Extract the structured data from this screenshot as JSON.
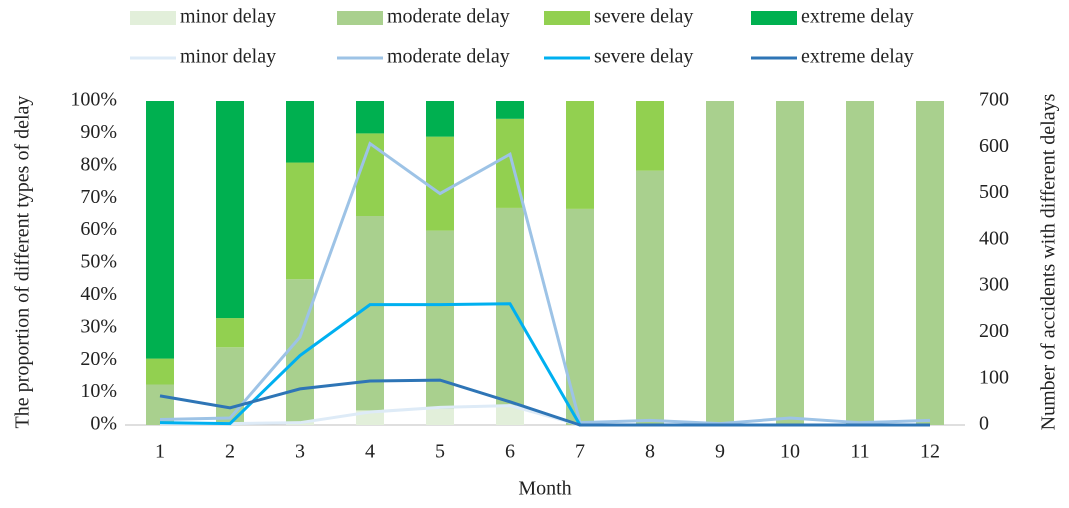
{
  "chart_data": {
    "type": "combo",
    "x_label": "Month",
    "y_label": "The proportion of different types of delay",
    "y2_label": "Number of accidents with different delays",
    "categories": [
      "1",
      "2",
      "3",
      "4",
      "5",
      "6",
      "7",
      "8",
      "9",
      "10",
      "11",
      "12"
    ],
    "ylim": [
      0,
      100
    ],
    "yticks": [
      {
        "value": 0,
        "label": "0%"
      },
      {
        "value": 10,
        "label": "10%"
      },
      {
        "value": 20,
        "label": "20%"
      },
      {
        "value": 30,
        "label": "30%"
      },
      {
        "value": 40,
        "label": "40%"
      },
      {
        "value": 50,
        "label": "50%"
      },
      {
        "value": 60,
        "label": "60%"
      },
      {
        "value": 70,
        "label": "70%"
      },
      {
        "value": 80,
        "label": "80%"
      },
      {
        "value": 90,
        "label": "90%"
      },
      {
        "value": 100,
        "label": "100%"
      }
    ],
    "y2lim": [
      0,
      700
    ],
    "y2ticks": [
      0,
      100,
      200,
      300,
      400,
      500,
      600,
      700
    ],
    "series": [
      {
        "name": "minor delay",
        "type": "bar",
        "color": "#e2efda",
        "values": [
          0,
          0,
          1,
          4.5,
          5,
          6,
          0,
          0,
          0,
          0,
          0,
          0
        ]
      },
      {
        "name": "moderate delay",
        "type": "bar",
        "color": "#a9d08e",
        "values": [
          12.5,
          24,
          44,
          60,
          55,
          61,
          66.7,
          78.5,
          100,
          100,
          100,
          100
        ]
      },
      {
        "name": "severe delay",
        "type": "bar",
        "color": "#92d050",
        "values": [
          8,
          9,
          36,
          25.5,
          29,
          27.5,
          33.3,
          21.5,
          0,
          0,
          0,
          0
        ]
      },
      {
        "name": "extreme delay",
        "type": "bar",
        "color": "#00b050",
        "values": [
          79.5,
          67,
          19,
          10,
          11,
          5.5,
          0,
          0,
          0,
          0,
          0,
          0
        ]
      },
      {
        "name": "minor delay",
        "type": "line",
        "axis": "y2",
        "color": "#deebf7",
        "values": [
          3,
          3,
          5,
          28,
          38,
          42,
          0,
          0,
          0,
          0,
          0,
          0
        ]
      },
      {
        "name": "moderate delay",
        "type": "line",
        "axis": "y2",
        "color": "#9dc3e6",
        "values": [
          12,
          15,
          190,
          608,
          500,
          585,
          5,
          10,
          3,
          15,
          5,
          10
        ]
      },
      {
        "name": "severe delay",
        "type": "line",
        "axis": "y2",
        "color": "#00b0f0",
        "values": [
          5,
          3,
          150,
          260,
          260,
          262,
          0,
          0,
          0,
          0,
          0,
          0
        ]
      },
      {
        "name": "extreme delay",
        "type": "line",
        "axis": "y2",
        "color": "#2e75b6",
        "values": [
          63,
          37,
          78,
          95,
          97,
          50,
          0,
          0,
          0,
          0,
          0,
          0
        ]
      }
    ]
  }
}
